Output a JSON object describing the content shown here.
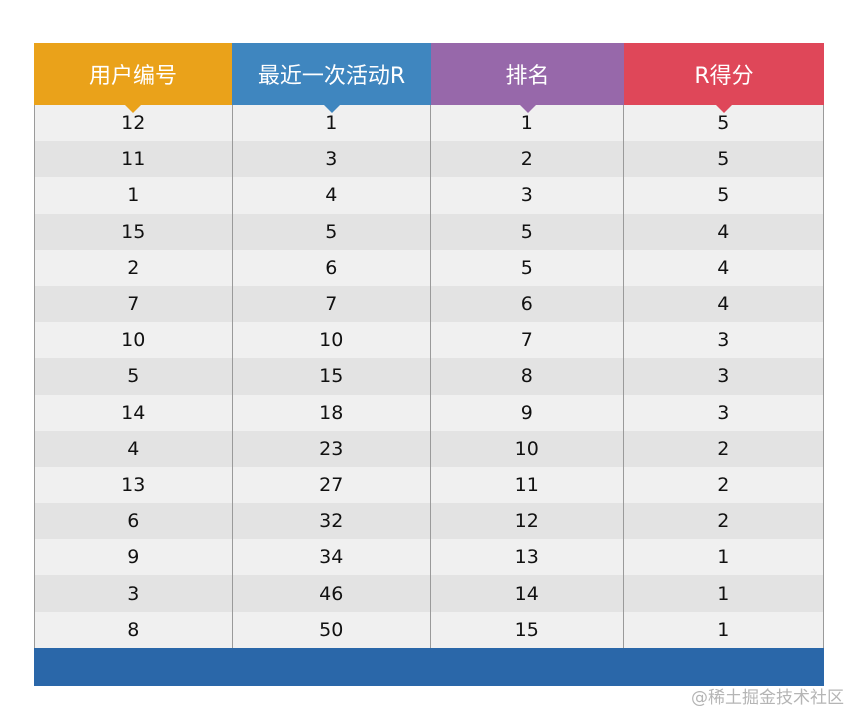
{
  "table": {
    "headers": [
      {
        "label": "用户编号",
        "color": "#eaa21a"
      },
      {
        "label": "最近一次活动R",
        "color": "#3f86bf"
      },
      {
        "label": "排名",
        "color": "#9768aa"
      },
      {
        "label": "R得分",
        "color": "#df4759"
      }
    ],
    "rows": [
      [
        "12",
        "1",
        "1",
        "5"
      ],
      [
        "11",
        "3",
        "2",
        "5"
      ],
      [
        "1",
        "4",
        "3",
        "5"
      ],
      [
        "15",
        "5",
        "5",
        "4"
      ],
      [
        "2",
        "6",
        "5",
        "4"
      ],
      [
        "7",
        "7",
        "6",
        "4"
      ],
      [
        "10",
        "10",
        "7",
        "3"
      ],
      [
        "5",
        "15",
        "8",
        "3"
      ],
      [
        "14",
        "18",
        "9",
        "3"
      ],
      [
        "4",
        "23",
        "10",
        "2"
      ],
      [
        "13",
        "27",
        "11",
        "2"
      ],
      [
        "6",
        "32",
        "12",
        "2"
      ],
      [
        "9",
        "34",
        "13",
        "1"
      ],
      [
        "3",
        "46",
        "14",
        "1"
      ],
      [
        "8",
        "50",
        "15",
        "1"
      ]
    ],
    "footer_color": "#2a67a9"
  },
  "watermark": "@稀土掘金技术社区"
}
